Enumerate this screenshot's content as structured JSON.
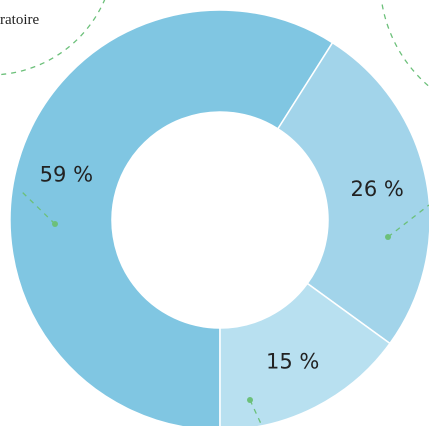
{
  "chart_data": {
    "type": "donut",
    "annotation": "ratoire",
    "categories": [
      null,
      null,
      null
    ],
    "values": [
      59,
      26,
      15
    ],
    "value_labels": [
      "59 %",
      "26 %",
      "15 %"
    ],
    "colors": [
      "#80c6e2",
      "#a2d4ea",
      "#b8e0f0"
    ]
  }
}
